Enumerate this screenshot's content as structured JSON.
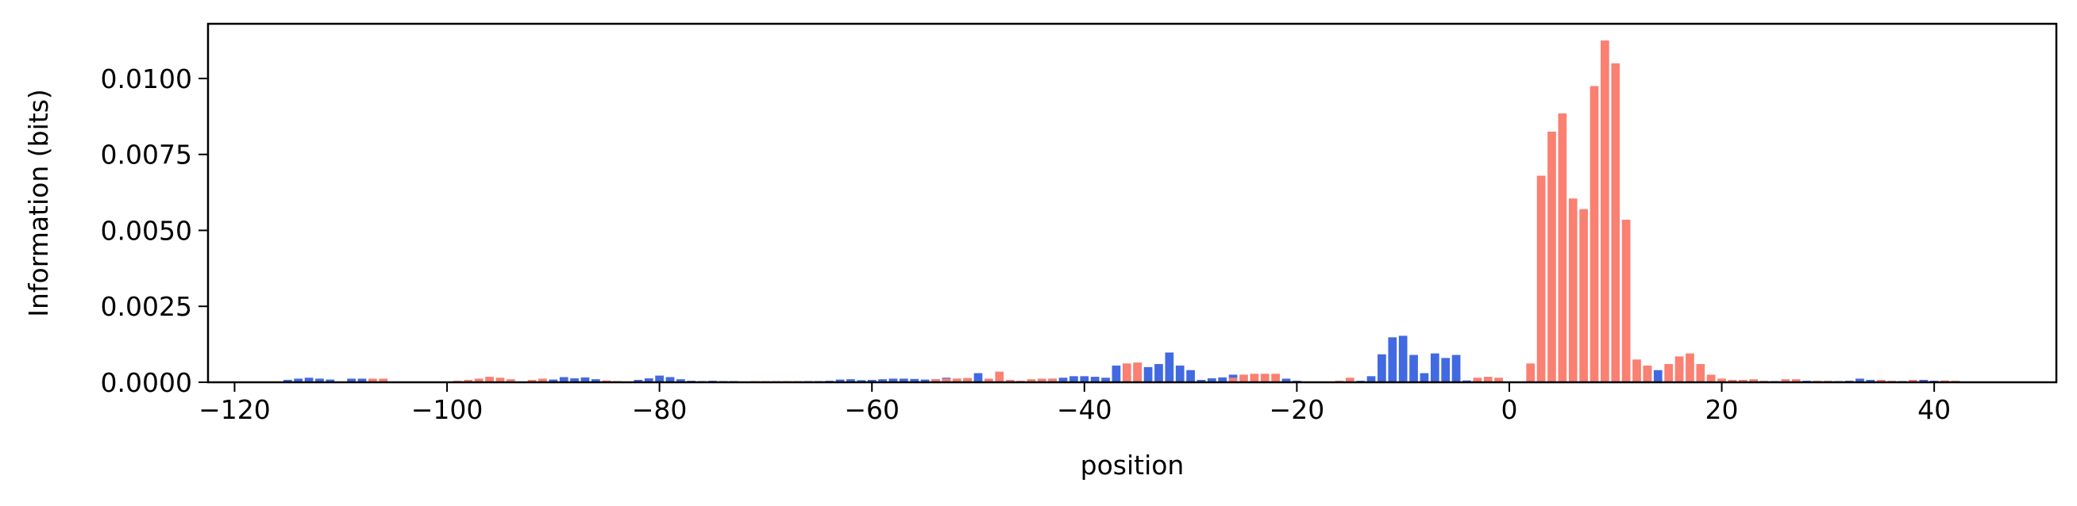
{
  "chart_data": {
    "type": "bar",
    "title": "",
    "xlabel": "position",
    "ylabel": "Information (bits)",
    "xlim": [
      -122.5,
      51.5
    ],
    "ylim": [
      0,
      0.0118
    ],
    "xticks": [
      -120,
      -100,
      -80,
      -60,
      -40,
      -20,
      0,
      20,
      40
    ],
    "xtick_labels": [
      "−120",
      "−100",
      "−80",
      "−60",
      "−40",
      "−20",
      "0",
      "20",
      "40"
    ],
    "yticks": [
      0,
      0.0025,
      0.005,
      0.0075,
      0.01
    ],
    "ytick_labels": [
      "0.0000",
      "0.0025",
      "0.0050",
      "0.0075",
      "0.0100"
    ],
    "grid": false,
    "colors": {
      "blue": "#4169e1",
      "red": "#fa8072"
    },
    "series": [
      {
        "color": "blue",
        "x": [
          -115,
          -114,
          -113,
          -112,
          -111,
          -109,
          -108,
          -90,
          -89,
          -88,
          -87,
          -86,
          -82,
          -81,
          -80,
          -79,
          -78,
          -77,
          -76,
          -75,
          -74,
          -73,
          -66,
          -65,
          -64,
          -63,
          -62,
          -61,
          -60,
          -59,
          -58,
          -57,
          -56,
          -55,
          -54,
          -53,
          -52,
          -51,
          -50,
          -43,
          -42,
          -41,
          -40,
          -39,
          -38,
          -37,
          -35,
          -34,
          -33,
          -32,
          -31,
          -30,
          -29,
          -28,
          -27,
          -26,
          -21,
          -20,
          -14,
          -13,
          -12,
          -11,
          -10,
          -9,
          -8,
          -7,
          -6,
          -5,
          -4,
          11,
          12,
          13,
          14,
          15,
          16,
          25,
          28,
          31,
          32,
          33,
          34,
          37,
          39,
          40
        ],
        "values": [
          8e-05,
          0.00012,
          0.00015,
          0.00012,
          9e-05,
          0.00012,
          0.00012,
          9e-05,
          0.00017,
          0.00013,
          0.00016,
          0.0001,
          8e-05,
          0.00013,
          0.00022,
          0.00017,
          0.0001,
          5e-05,
          4e-05,
          5e-05,
          4e-05,
          4e-05,
          4e-05,
          4e-05,
          5e-05,
          9e-05,
          0.0001,
          7e-05,
          8e-05,
          0.0001,
          0.00012,
          0.00012,
          0.00011,
          9e-05,
          0.0001,
          0.00015,
          0.00012,
          0.0001,
          0.0003,
          0.00012,
          0.00015,
          0.0002,
          0.0002,
          0.00018,
          0.00015,
          0.00055,
          0.0006,
          0.0005,
          0.0006,
          0.00098,
          0.00055,
          0.0004,
          8e-05,
          0.00013,
          0.00016,
          0.00025,
          0.00012,
          5e-05,
          5e-05,
          0.0002,
          0.00092,
          0.00148,
          0.00153,
          0.0009,
          0.0003,
          0.00095,
          0.0008,
          0.0009,
          6e-05,
          0.00012,
          5e-05,
          0.00052,
          0.0004,
          5e-05,
          3e-05,
          4e-05,
          5e-05,
          4e-05,
          5e-05,
          0.00012,
          8e-05,
          4e-05,
          8e-05,
          5e-05
        ]
      },
      {
        "color": "red",
        "x": [
          -107,
          -106,
          -99,
          -98,
          -97,
          -96,
          -95,
          -94,
          -92,
          -91,
          -85,
          -84,
          -71,
          -70,
          -69,
          -68,
          -67,
          -54,
          -53,
          -52,
          -51,
          -49,
          -48,
          -47,
          -46,
          -45,
          -44,
          -43,
          -36,
          -35,
          -26,
          -25,
          -24,
          -23,
          -22,
          -16,
          -15,
          -3,
          -2,
          -1,
          2,
          3,
          4,
          5,
          6,
          7,
          8,
          9,
          10,
          11,
          12,
          13,
          15,
          16,
          17,
          18,
          19,
          20,
          21,
          22,
          23,
          24,
          26,
          27,
          29,
          30,
          35,
          36,
          38,
          41,
          42
        ],
        "values": [
          0.00012,
          0.00012,
          5e-05,
          8e-05,
          0.00012,
          0.00018,
          0.00015,
          0.0001,
          8e-05,
          0.00012,
          6e-05,
          4e-05,
          4e-05,
          4e-05,
          4e-05,
          4e-05,
          4e-05,
          0.0001,
          0.00012,
          0.00012,
          0.00014,
          0.00012,
          0.00035,
          8e-05,
          5e-05,
          0.0001,
          0.00012,
          0.00012,
          0.00062,
          0.00065,
          0.00015,
          0.00025,
          0.00028,
          0.00028,
          0.00028,
          5e-05,
          0.00015,
          0.00015,
          0.00018,
          0.00015,
          0.00062,
          0.0068,
          0.00825,
          0.00885,
          0.00605,
          0.0057,
          0.00975,
          0.01125,
          0.0105,
          0.00535,
          0.00075,
          0.00055,
          0.0006,
          0.00085,
          0.00095,
          0.0006,
          0.00025,
          0.00012,
          8e-05,
          8e-05,
          0.0001,
          5e-05,
          0.0001,
          0.0001,
          5e-05,
          5e-05,
          8e-05,
          5e-05,
          8e-05,
          6e-05,
          5e-05
        ]
      }
    ]
  }
}
